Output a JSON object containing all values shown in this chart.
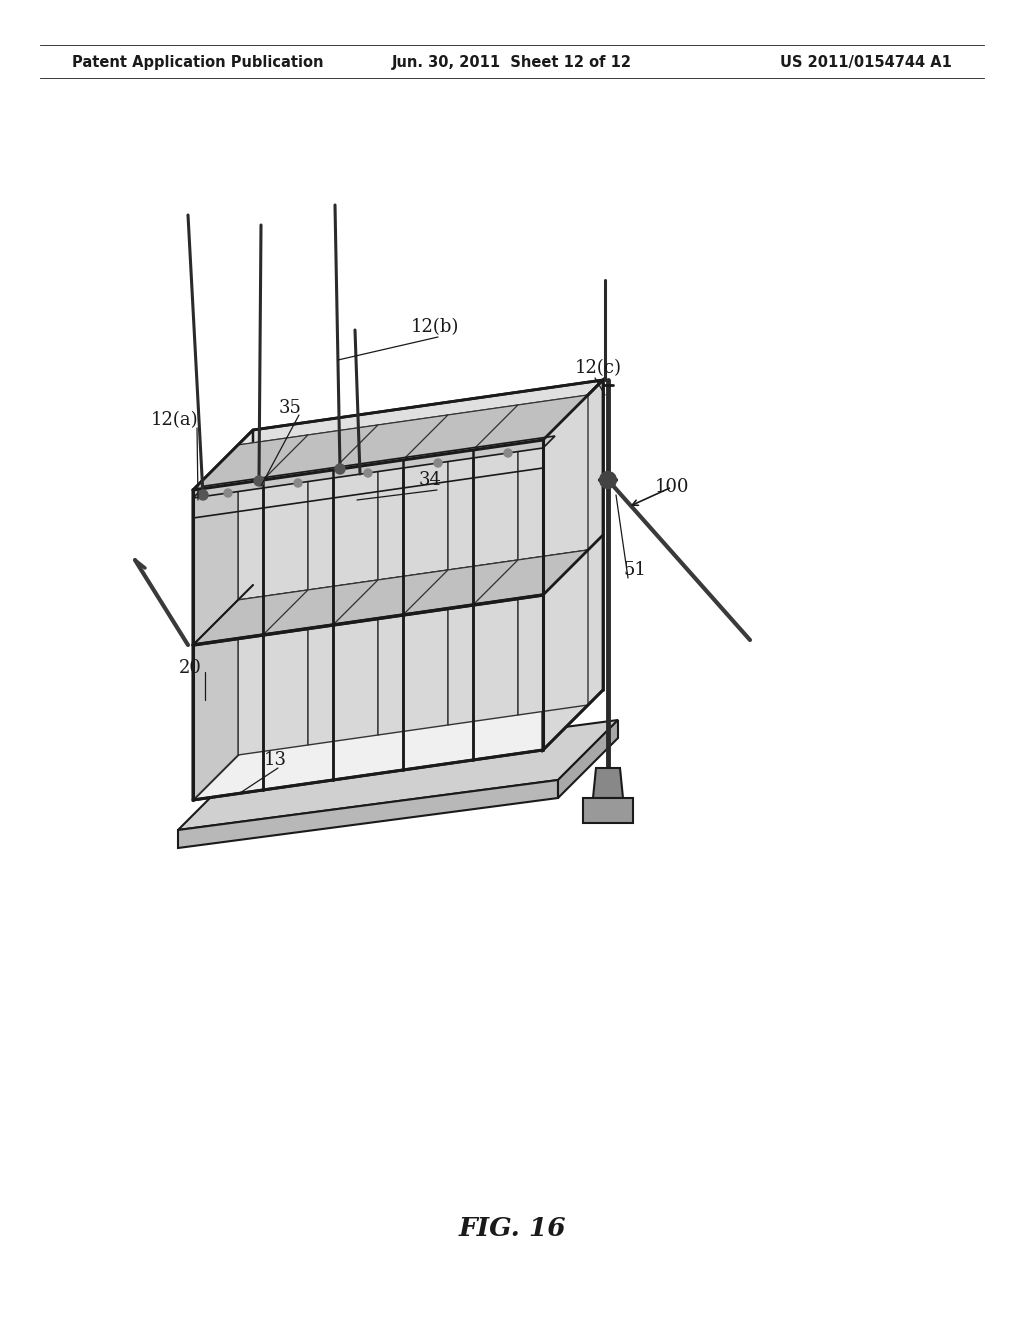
{
  "bg_color": "#ffffff",
  "header_left": "Patent Application Publication",
  "header_center": "Jun. 30, 2011  Sheet 12 of 12",
  "header_right": "US 2011/0154744 A1",
  "figure_label": "FIG. 16",
  "labels": {
    "12a": "12(a)",
    "12b": "12(b)",
    "12c": "12(c)",
    "13": "13",
    "20": "20",
    "34": "34",
    "35": "35",
    "51": "51",
    "100": "100"
  },
  "line_color": "#1a1a1a",
  "text_color": "#1a1a1a",
  "header_fontsize": 10.5,
  "label_fontsize": 13,
  "fig_label_fontsize": 19
}
